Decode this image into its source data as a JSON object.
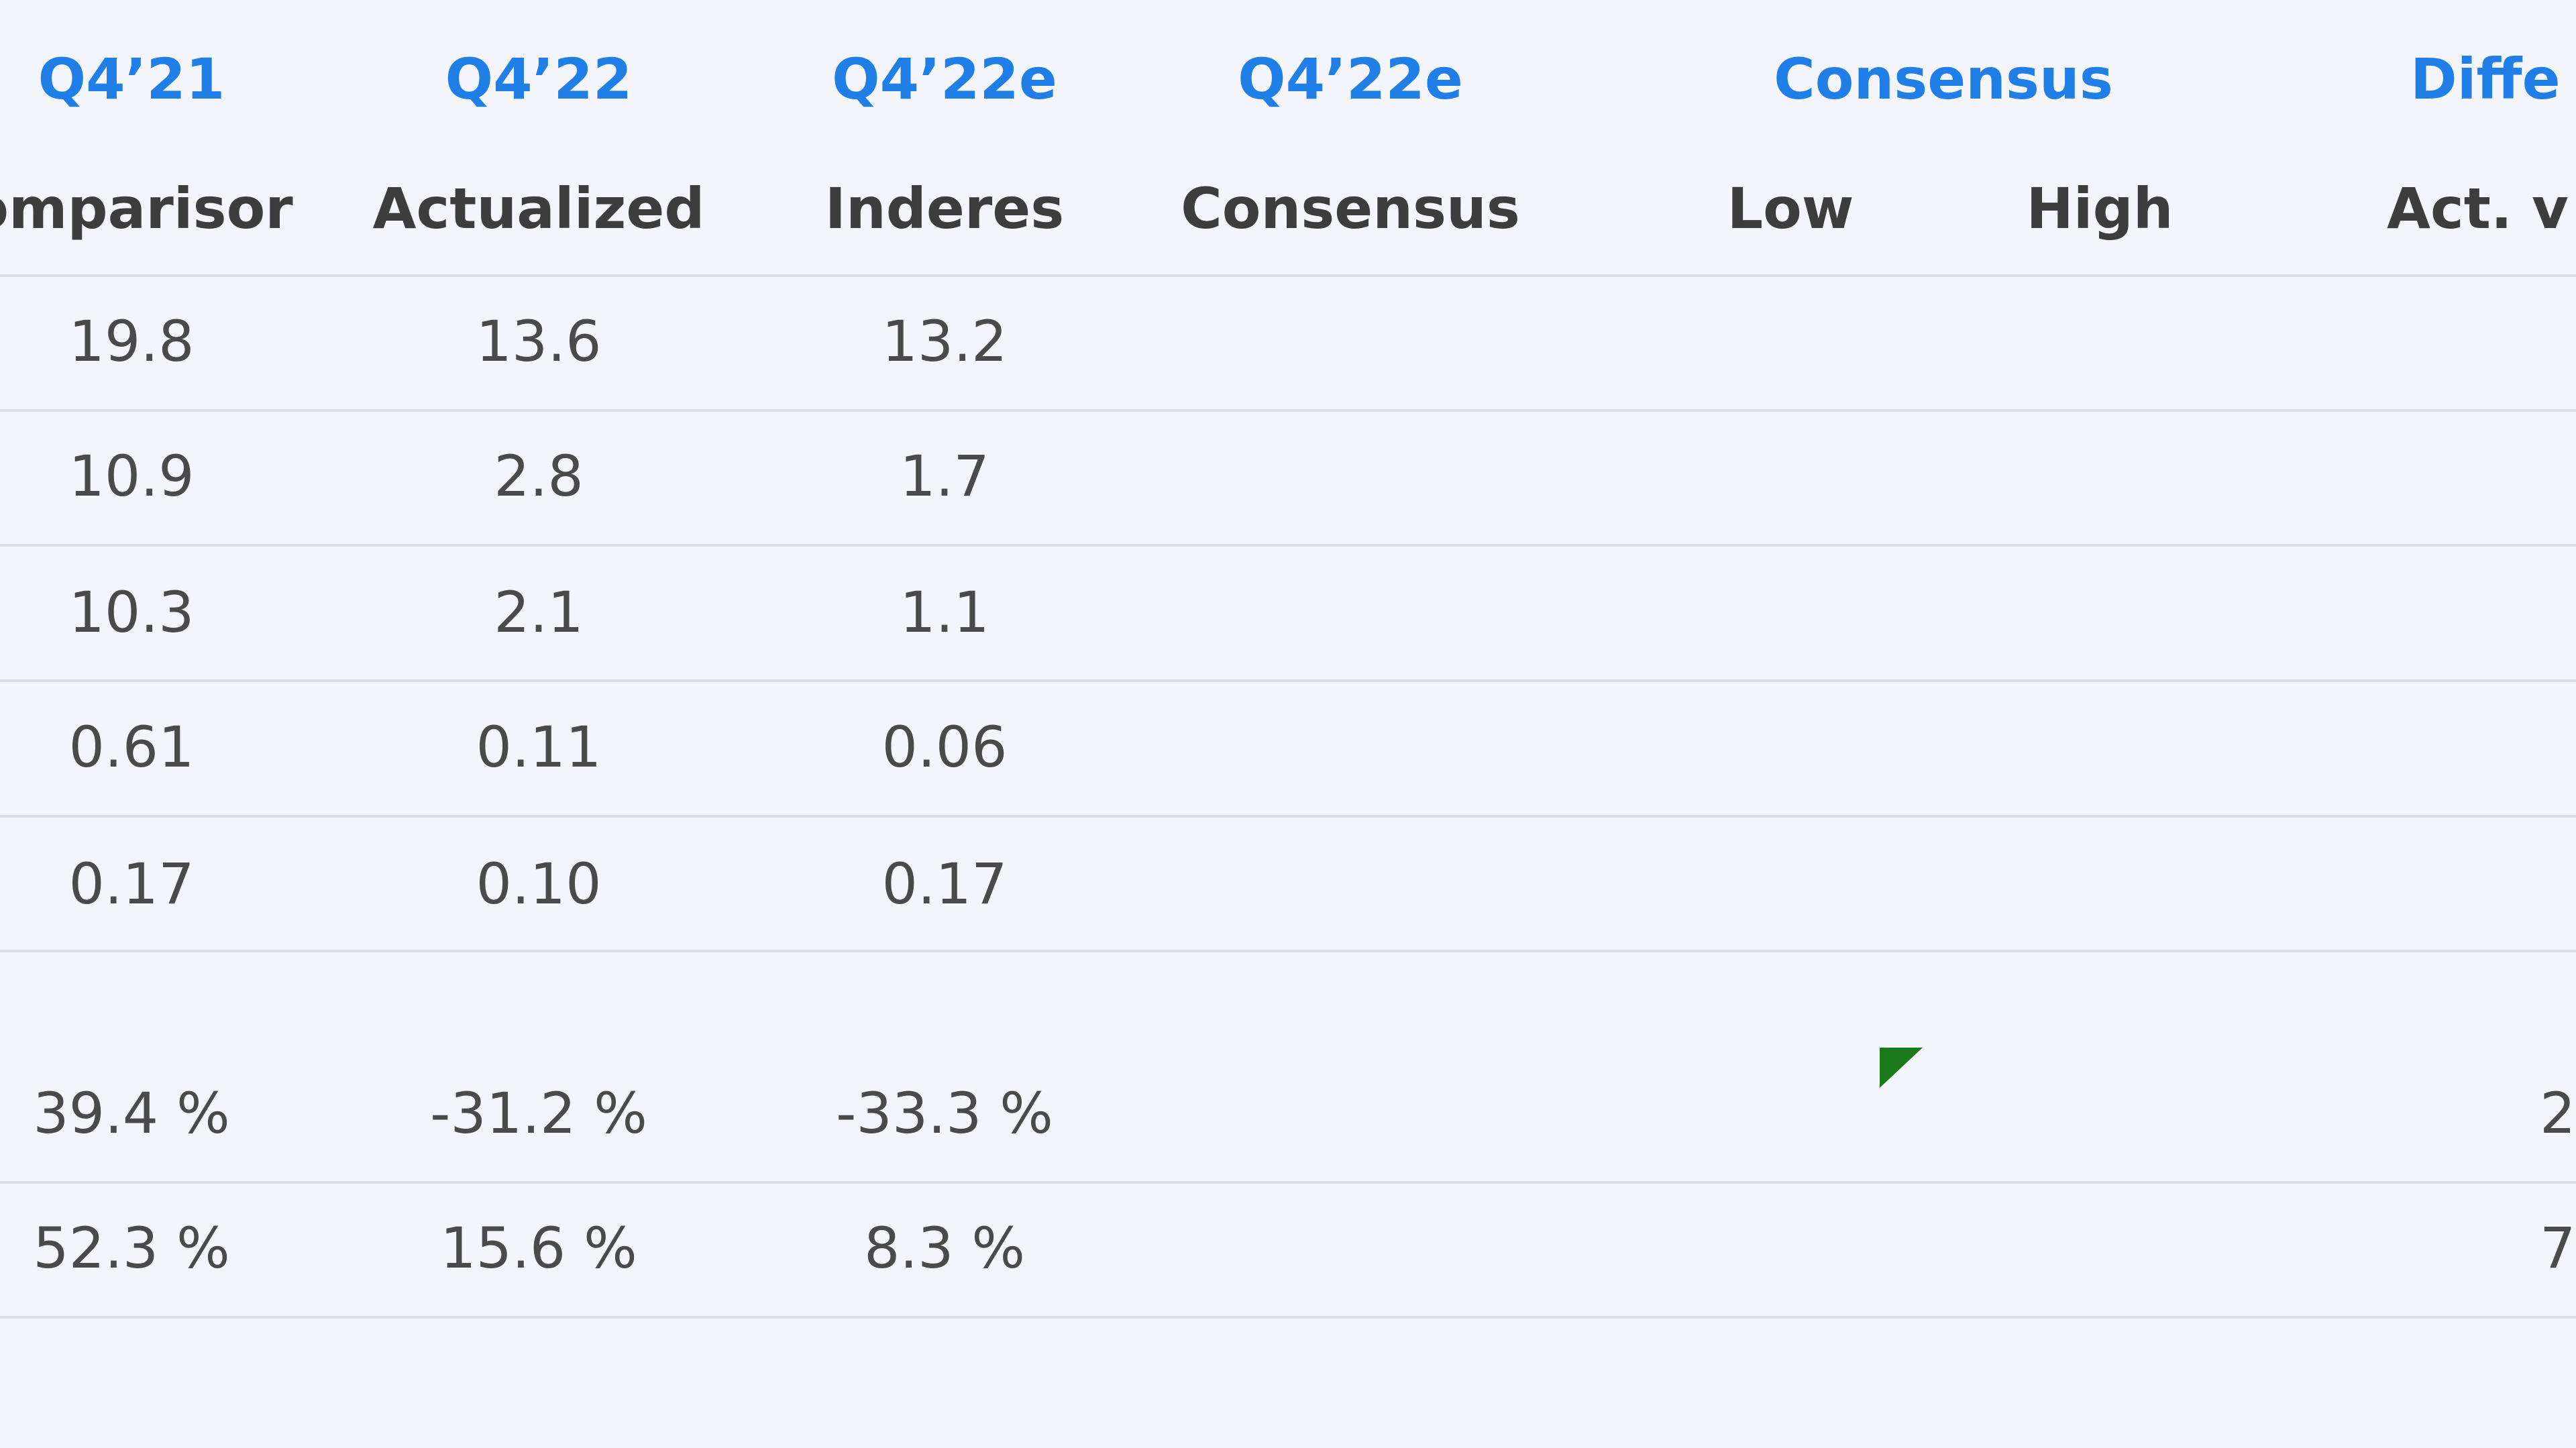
{
  "header": {
    "periods": [
      "Q4’21",
      "Q4’22",
      "Q4’22e",
      "Q4’22e",
      "Consensus",
      "Diffe"
    ],
    "labels": [
      "omparisor",
      "Actualized",
      "Inderes",
      "Consensus",
      "Low",
      "High",
      "Act. v"
    ]
  },
  "table": {
    "rows": [
      [
        "19.8",
        "13.6",
        "13.2"
      ],
      [
        "10.9",
        "2.8",
        "1.7"
      ],
      [
        "10.3",
        "2.1",
        "1.1"
      ],
      [
        "0.61",
        "0.11",
        "0.06"
      ],
      [
        "0.17",
        "0.10",
        "0.17"
      ],
      [
        "39.4 %",
        "-31.2 %",
        "-33.3 %",
        "2"
      ],
      [
        "52.3 %",
        "15.6 %",
        "8.3 %",
        "7"
      ]
    ]
  }
}
